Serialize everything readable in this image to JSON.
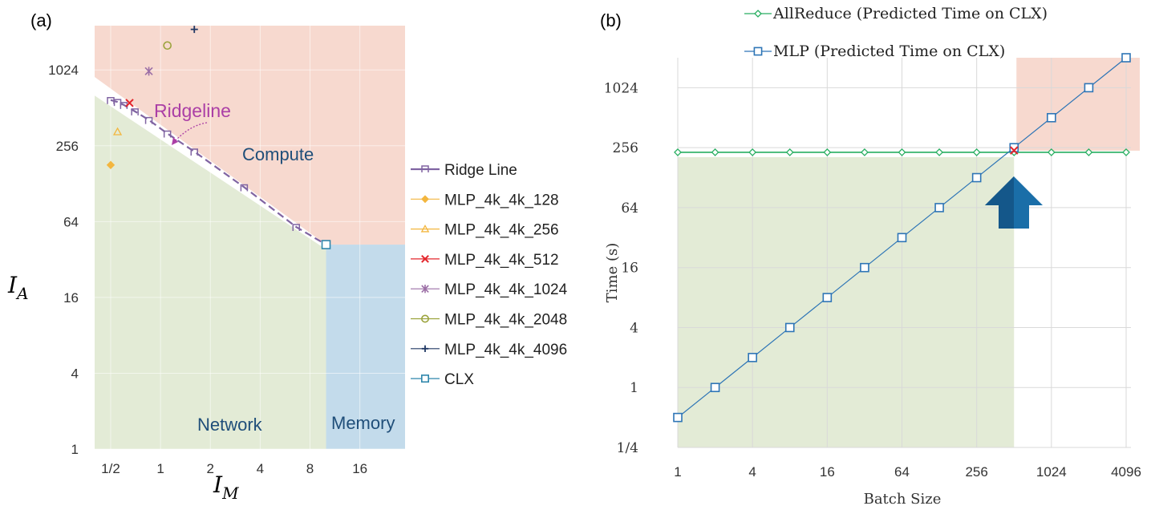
{
  "chart_data": [
    {
      "panel_label": "(a)",
      "type": "scatter",
      "xlabel_main": "I",
      "xlabel_sub": "M",
      "ylabel_main": "I",
      "ylabel_sub": "A",
      "x_scale": "log2",
      "y_scale": "log2",
      "xlim": [
        0.4,
        30
      ],
      "ylim": [
        1,
        2300
      ],
      "x_ticks": [
        0.5,
        1,
        2,
        4,
        8,
        16
      ],
      "x_tick_labels": [
        "1/2",
        "1",
        "2",
        "4",
        "8",
        "16"
      ],
      "y_ticks": [
        1,
        4,
        16,
        64,
        256,
        1024
      ],
      "y_tick_labels": [
        "1",
        "4",
        "16",
        "64",
        "256",
        "1024"
      ],
      "regions": {
        "compute": "Compute",
        "network": "Network",
        "memory": "Memory"
      },
      "ridgeline_annotation": "Ridgeline",
      "series": [
        {
          "name": "Ridge Line",
          "marker": "step",
          "color": "#8064a2",
          "points": [
            [
              0.5,
              590
            ],
            [
              0.55,
              570
            ],
            [
              0.6,
              540
            ],
            [
              0.7,
              480
            ],
            [
              0.85,
              410
            ],
            [
              1.1,
              320
            ],
            [
              1.6,
              230
            ],
            [
              3.2,
              120
            ],
            [
              6.6,
              58
            ],
            [
              10,
              42
            ]
          ]
        },
        {
          "name": "MLP_4k_4k_128",
          "marker": "diamond",
          "color": "#f3b63f",
          "points": [
            [
              0.5,
              180
            ]
          ]
        },
        {
          "name": "MLP_4k_4k_256",
          "marker": "triangle",
          "color": "#f3b63f",
          "points": [
            [
              0.55,
              330
            ]
          ]
        },
        {
          "name": "MLP_4k_4k_512",
          "marker": "x",
          "color": "#e3262c",
          "points": [
            [
              0.65,
              560
            ]
          ]
        },
        {
          "name": "MLP_4k_4k_1024",
          "marker": "asterisk",
          "color": "#9c6fa6",
          "points": [
            [
              0.85,
              1000
            ]
          ]
        },
        {
          "name": "MLP_4k_4k_2048",
          "marker": "circle",
          "color": "#9ba33c",
          "points": [
            [
              1.1,
              1600
            ]
          ]
        },
        {
          "name": "MLP_4k_4k_4096",
          "marker": "plus",
          "color": "#203864",
          "points": [
            [
              1.6,
              2150
            ]
          ]
        },
        {
          "name": "CLX",
          "marker": "square",
          "color": "#2e86ab",
          "points": [
            [
              10,
              42
            ]
          ]
        }
      ]
    },
    {
      "panel_label": "(b)",
      "type": "line",
      "xlabel": "Batch Size",
      "ylabel": "Time (s)",
      "x_scale": "log2",
      "y_scale": "log2",
      "xlim": [
        1,
        4096
      ],
      "ylim": [
        0.25,
        2048
      ],
      "x_ticks": [
        1,
        4,
        16,
        64,
        256,
        1024,
        4096
      ],
      "x_tick_labels": [
        "1",
        "4",
        "16",
        "64",
        "256",
        "1024",
        "4096"
      ],
      "y_ticks": [
        0.25,
        1,
        4,
        16,
        64,
        256,
        1024
      ],
      "y_tick_labels": [
        "1/4",
        "1",
        "4",
        "16",
        "64",
        "256",
        "1024"
      ],
      "categories": [
        1,
        2,
        4,
        8,
        16,
        32,
        64,
        128,
        256,
        512,
        1024,
        2048,
        4096
      ],
      "series": [
        {
          "name": "AllReduce (Predicted Time on CLX)",
          "marker": "diamond",
          "color": "#27ae60",
          "values": [
            230,
            230,
            230,
            230,
            230,
            230,
            230,
            230,
            230,
            230,
            230,
            230,
            230
          ]
        },
        {
          "name": "MLP (Predicted Time on CLX)",
          "marker": "square",
          "color": "#2e75b6",
          "values": [
            0.5,
            1,
            2,
            4,
            8,
            16,
            32,
            64,
            128,
            256,
            512,
            1024,
            2048
          ]
        }
      ],
      "crossover": {
        "batch_size": 512,
        "time": 240,
        "marker": "x",
        "color": "#e3262c"
      }
    }
  ],
  "colors": {
    "compute_region": "#f7d9cf",
    "network_region": "#e3ebd6",
    "memory_region": "#c3dbeb",
    "text_blue": "#1f4e79",
    "arrow": "#1a6ea8",
    "grid": "#d9d9d9"
  }
}
